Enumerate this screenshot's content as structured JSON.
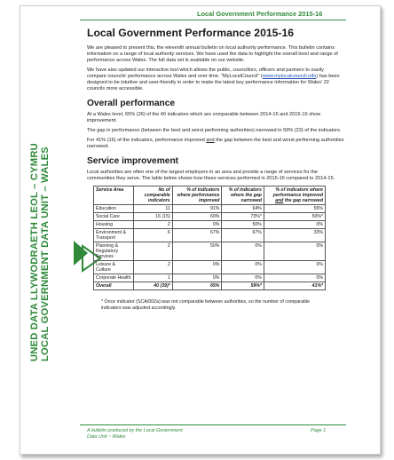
{
  "header": {
    "title": "Local Government Performance 2015-16"
  },
  "sidebar": {
    "text_line1": "UNED DATA LLYWODRAETH LEOL – CYMRU",
    "text_line2": "LOCAL GOVERNMENT DATA UNIT – WALES"
  },
  "doc": {
    "title": "Local Government Performance 2015-16",
    "intro_p1": "We are pleased to present this, the eleventh annual bulletin on local authority performance. This bulletin contains information on a range of local authority services. We have used the data to highlight the overall level and range of performance across Wales. The full data set is available on our website.",
    "intro_p2_a": "We have also updated our interactive tool which allows the public, councillors, officers and partners to easily compare councils' performance across Wales and over time. \"MyLocalCouncil\" (",
    "intro_p2_link": "www.mylocalcouncil.info",
    "intro_p2_b": ") has been designed to be intuitive and user-friendly in order to make the latest key performance information for Wales' 22 councils more accessible.",
    "section1_title": "Overall performance",
    "s1_p1": "At a Wales level, 65% (26) of the 40 indicators which are comparable between 2014-15 and 2015-16 show improvement.",
    "s1_p2": "The gap in performance (between the best and worst performing authorities) narrowed in 59% (23) of the indicators.",
    "s1_p3_a": "For 41% (16) of the indicators, performance improved ",
    "s1_p3_and": "and",
    "s1_p3_b": " the gap between the best and worst performing authorities narrowed.",
    "section2_title": "Service improvement",
    "s2_p1": "Local authorities are often one of the largest employers in an area and provide a range of services for the communities they serve. The table below shows how these services performed in 2015-16 compared to 2014-15.",
    "footnote": "* Once indicator (SCA/002a) was not comparable between authorities, so the number of comparable indicators was adjusted accordingly."
  },
  "table": {
    "headers": [
      "Service Area",
      "No of comparable indicators",
      "% of indicators where performance improved",
      "% of indicators where the gap narrowed",
      "% of indicators where performance improved and the gap narrowed"
    ],
    "rows": [
      [
        "Education",
        "11",
        "91%",
        "64%",
        "55%"
      ],
      [
        "Social Care",
        "16 (15)",
        "69%",
        "73%*",
        "50%*"
      ],
      [
        "Housing",
        "2",
        "0%",
        "50%",
        "0%"
      ],
      [
        "Environment & Transport",
        "6",
        "67%",
        "67%",
        "33%"
      ],
      [
        "Planning & Regulatory Services",
        "2",
        "50%",
        "0%",
        "0%"
      ],
      [
        "Leisure & Culture",
        "2",
        "0%",
        "0%",
        "0%"
      ],
      [
        "Corporate Health",
        "1",
        "0%",
        "0%",
        "0%"
      ],
      [
        "Overall",
        "40 (39)*",
        "65%",
        "59%*",
        "41%*"
      ]
    ]
  },
  "footer": {
    "left_line1": "A bulletin produced by the Local Government",
    "left_line2": "Data Unit ~ Wales",
    "right": "Page 1"
  },
  "colors": {
    "accent": "#2f8a3a"
  }
}
